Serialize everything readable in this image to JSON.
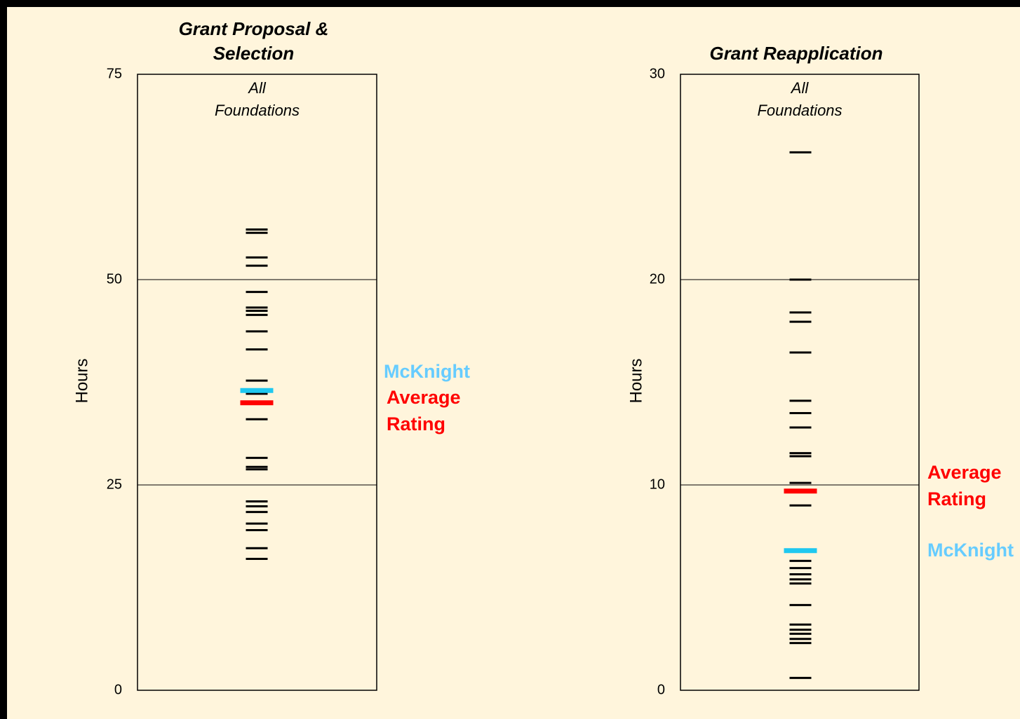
{
  "chart_data": [
    {
      "type": "strip",
      "title": "Grant Proposal & Selection",
      "subtitle": "All Foundations",
      "y_label": "Hours",
      "ylim": [
        0,
        75
      ],
      "yticks": [
        0,
        25,
        50,
        75
      ],
      "grid": true,
      "color": "#000000",
      "values": [
        56.1,
        55.7,
        52.7,
        51.7,
        48.5,
        46.6,
        46.2,
        45.7,
        43.7,
        41.5,
        37.7,
        36.1,
        33.0,
        28.3,
        27.2,
        26.9,
        23.0,
        22.4,
        21.7,
        20.3,
        19.5,
        17.3,
        16.0
      ],
      "markers": [
        {
          "label": "McKnight",
          "value": 36.5,
          "color": "#1ec8f0",
          "label_color": "#66ccff"
        },
        {
          "label": "Average Rating",
          "value": 35.0,
          "color": "#ff0000",
          "label_color": "#ff0000"
        }
      ]
    },
    {
      "type": "strip",
      "title": "Grant Reapplication",
      "subtitle": "All Foundations",
      "y_label": "Hours",
      "ylim": [
        0,
        30
      ],
      "yticks": [
        0,
        10,
        20,
        30
      ],
      "grid": true,
      "color": "#000000",
      "values": [
        26.2,
        20.0,
        18.4,
        17.95,
        16.45,
        14.1,
        13.5,
        12.8,
        11.55,
        11.4,
        10.1,
        9.0,
        6.3,
        5.95,
        5.65,
        5.4,
        5.2,
        4.15,
        3.2,
        2.95,
        2.75,
        2.5,
        2.3,
        0.6
      ],
      "markers": [
        {
          "label": "McKnight",
          "value": 6.8,
          "color": "#1ec8f0",
          "label_color": "#66ccff"
        },
        {
          "label": "Average Rating",
          "value": 9.7,
          "color": "#ff0000",
          "label_color": "#ff0000"
        }
      ]
    }
  ]
}
